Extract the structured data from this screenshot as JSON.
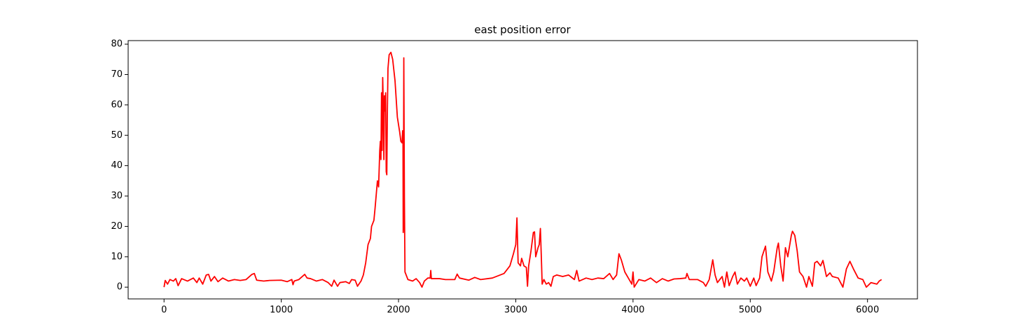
{
  "chart_data": {
    "type": "line",
    "title": "east position error",
    "x": [
      0,
      10,
      30,
      50,
      80,
      100,
      120,
      150,
      200,
      250,
      280,
      300,
      330,
      360,
      380,
      400,
      430,
      460,
      500,
      550,
      600,
      650,
      700,
      750,
      770,
      790,
      850,
      900,
      1000,
      1050,
      1090,
      1100,
      1110,
      1150,
      1200,
      1220,
      1250,
      1300,
      1350,
      1400,
      1430,
      1450,
      1480,
      1500,
      1550,
      1580,
      1600,
      1630,
      1650,
      1680,
      1700,
      1720,
      1740,
      1760,
      1770,
      1790,
      1800,
      1820,
      1830,
      1840,
      1845,
      1850,
      1855,
      1860,
      1865,
      1870,
      1875,
      1880,
      1885,
      1890,
      1895,
      1900,
      1905,
      1910,
      1920,
      1935,
      1950,
      1970,
      1990,
      2010,
      2020,
      2030,
      2035,
      2038,
      2040,
      2042,
      2045,
      2050,
      2055,
      2080,
      2120,
      2150,
      2180,
      2200,
      2220,
      2250,
      2270,
      2275,
      2280,
      2350,
      2400,
      2480,
      2500,
      2520,
      2600,
      2650,
      2700,
      2800,
      2900,
      2950,
      2980,
      3000,
      3010,
      3020,
      3040,
      3050,
      3070,
      3090,
      3100,
      3110,
      3130,
      3150,
      3160,
      3170,
      3190,
      3200,
      3210,
      3220,
      3225,
      3240,
      3260,
      3280,
      3300,
      3320,
      3350,
      3400,
      3450,
      3500,
      3520,
      3540,
      3600,
      3650,
      3700,
      3750,
      3800,
      3830,
      3860,
      3880,
      3900,
      3930,
      3960,
      3990,
      4000,
      4010,
      4050,
      4100,
      4150,
      4200,
      4250,
      4300,
      4350,
      4400,
      4450,
      4460,
      4480,
      4550,
      4600,
      4620,
      4650,
      4680,
      4700,
      4720,
      4760,
      4780,
      4800,
      4820,
      4850,
      4870,
      4890,
      4920,
      4950,
      4970,
      5000,
      5030,
      5050,
      5080,
      5100,
      5130,
      5150,
      5180,
      5200,
      5230,
      5240,
      5260,
      5280,
      5300,
      5320,
      5350,
      5360,
      5380,
      5400,
      5420,
      5450,
      5480,
      5500,
      5530,
      5550,
      5570,
      5600,
      5620,
      5650,
      5680,
      5700,
      5750,
      5790,
      5800,
      5820,
      5850,
      5880,
      5920,
      5960,
      5990,
      6030,
      6080,
      6100,
      6120
    ],
    "series": [
      {
        "color": "#ff0000",
        "values": [
          0,
          2.2,
          1,
          2.5,
          2,
          2.8,
          0.5,
          2.8,
          2,
          3,
          1.5,
          3,
          1,
          4,
          4.2,
          2,
          3.5,
          1.8,
          3,
          2,
          2.5,
          2.2,
          2.5,
          4.2,
          4.5,
          2.3,
          2,
          2.2,
          2.3,
          1.8,
          2.5,
          0.8,
          2,
          2.5,
          4.2,
          3,
          2.8,
          2,
          2.5,
          1.5,
          0.3,
          2.3,
          0.3,
          1.5,
          1.8,
          1.2,
          2.5,
          2.3,
          0.3,
          2,
          4,
          8,
          14,
          16,
          20,
          22,
          26,
          35,
          33,
          45,
          48,
          42,
          64,
          45,
          69,
          60,
          42,
          63,
          58,
          64,
          38,
          37,
          58,
          72,
          76.5,
          77.3,
          75,
          68,
          56,
          51,
          48,
          47.5,
          51.5,
          50,
          18,
          20,
          75.5,
          30,
          5,
          2.5,
          2,
          2.8,
          1.5,
          0,
          2,
          3,
          3,
          5.5,
          2.8,
          2.8,
          2.5,
          2.5,
          4.3,
          3,
          2.3,
          3.2,
          2.5,
          3,
          4.5,
          7,
          11,
          14,
          22.8,
          8,
          7,
          9.5,
          7,
          6.5,
          0.3,
          7,
          12,
          18,
          18.2,
          10,
          13,
          14,
          19.3,
          7.5,
          1,
          2.5,
          1,
          1.5,
          0.3,
          3.5,
          4,
          3.5,
          4,
          2.5,
          5.5,
          2,
          3,
          2.5,
          3,
          2.8,
          4.5,
          2.5,
          4,
          11,
          9,
          5,
          3,
          1,
          5,
          0,
          2.5,
          2,
          3,
          1.5,
          2.8,
          2,
          2.7,
          2.8,
          3,
          4.5,
          2.5,
          2.5,
          1.5,
          0.3,
          2.5,
          9,
          4,
          1.5,
          3.5,
          0,
          5,
          0.5,
          3.5,
          5,
          1,
          3,
          2,
          3,
          0.3,
          3,
          0.5,
          3,
          10,
          13.5,
          5,
          2,
          5,
          13,
          14.5,
          7,
          2,
          13,
          10,
          17,
          18.4,
          17,
          12,
          5,
          3.5,
          0,
          3.5,
          0.3,
          8,
          8.5,
          7,
          8.8,
          3.5,
          4.7,
          3.5,
          3,
          0,
          2,
          6,
          8.5,
          6,
          3,
          2.5,
          0,
          1.5,
          1,
          2,
          2.5
        ]
      }
    ],
    "xlim": [
      -306,
      6426
    ],
    "xticks": [
      0,
      1000,
      2000,
      3000,
      4000,
      5000,
      6000
    ],
    "ylim": [
      -3.87,
      81.17
    ],
    "yticks": [
      0,
      10,
      20,
      30,
      40,
      50,
      60,
      70,
      80
    ],
    "grid": false
  }
}
